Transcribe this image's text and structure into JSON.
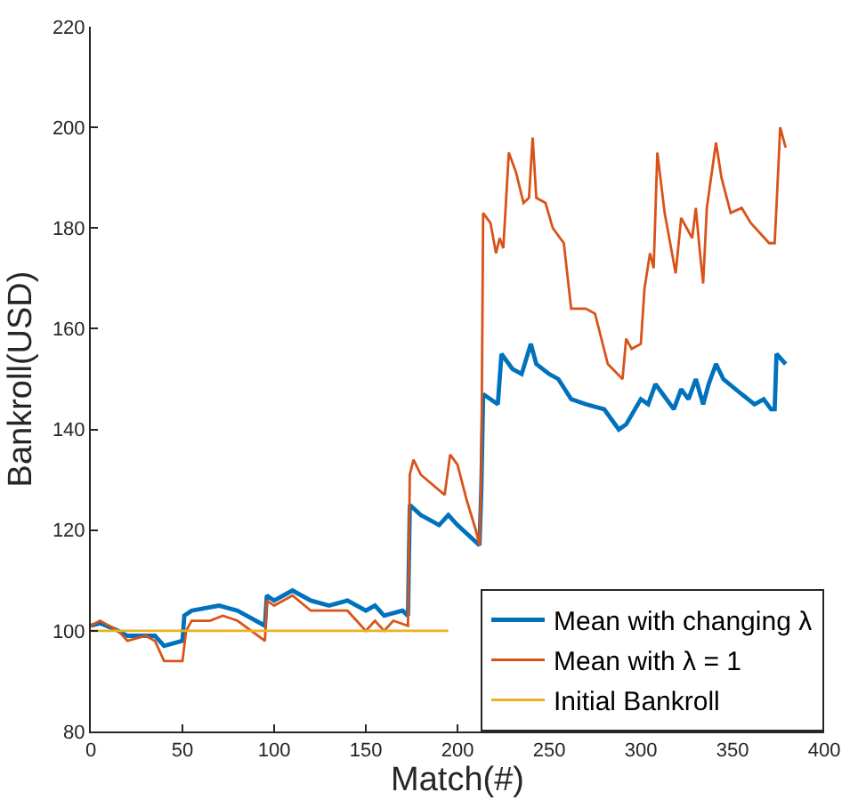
{
  "chart_data": {
    "type": "line",
    "xlabel": "Match(#)",
    "ylabel": "Bankroll(USD)",
    "xlim": [
      0,
      400
    ],
    "xticks": [
      0,
      50,
      100,
      150,
      200,
      250,
      300,
      350,
      400
    ],
    "ylim": [
      80,
      220
    ],
    "yticks": [
      80,
      100,
      120,
      140,
      160,
      180,
      200,
      220
    ],
    "grid": false,
    "legend": "bottom right",
    "marker": "none",
    "line_style": "solid",
    "series": [
      {
        "name": "Mean with changing λ",
        "color": "#0072bd",
        "x": [
          0,
          5,
          15,
          20,
          30,
          35,
          40,
          50,
          51,
          55,
          70,
          80,
          95,
          96,
          100,
          110,
          120,
          130,
          140,
          150,
          155,
          160,
          170,
          173,
          174,
          180,
          190,
          195,
          200,
          212,
          213,
          214,
          218,
          222,
          224,
          230,
          235,
          240,
          243,
          250,
          255,
          262,
          270,
          280,
          284,
          288,
          292,
          300,
          304,
          308,
          312,
          318,
          322,
          326,
          330,
          334,
          337,
          341,
          345,
          355,
          362,
          367,
          371,
          373,
          374,
          379
        ],
        "values": [
          101,
          101.5,
          100,
          99,
          99,
          99,
          97,
          98,
          103,
          104,
          105,
          104,
          101,
          107,
          106,
          108,
          106,
          105,
          106,
          104,
          105,
          103,
          104,
          103,
          125,
          123,
          121,
          123,
          121,
          117,
          128,
          147,
          146,
          145,
          155,
          152,
          151,
          157,
          153,
          151,
          150,
          146,
          145,
          144,
          142,
          140,
          141,
          146,
          145,
          149,
          147,
          144,
          148,
          146,
          150,
          145,
          149,
          153,
          150,
          147,
          145,
          146,
          144,
          144,
          155,
          153
        ]
      },
      {
        "name": "Mean with λ = 1",
        "color": "#d95319",
        "x": [
          0,
          5,
          15,
          20,
          30,
          35,
          40,
          45,
          50,
          52,
          55,
          65,
          72,
          80,
          95,
          96,
          100,
          110,
          120,
          130,
          140,
          150,
          155,
          160,
          165,
          173,
          174,
          176,
          180,
          193,
          196,
          200,
          205,
          210,
          212,
          213,
          214,
          218,
          221,
          223,
          225,
          228,
          232,
          236,
          239,
          241,
          243,
          248,
          252,
          258,
          262,
          270,
          275,
          282,
          290,
          292,
          295,
          300,
          302,
          305,
          307,
          309,
          313,
          317,
          319,
          322,
          325,
          328,
          330,
          332,
          334,
          336,
          341,
          344,
          349,
          355,
          360,
          365,
          370,
          373,
          375,
          376,
          379
        ],
        "values": [
          101,
          102,
          100,
          98,
          99,
          98,
          94,
          94,
          94,
          100,
          102,
          102,
          103,
          102,
          98,
          106,
          105,
          107,
          104,
          104,
          104,
          100,
          102,
          100,
          102,
          101,
          131,
          134,
          131,
          127,
          135,
          133,
          126,
          120,
          117,
          131,
          183,
          181,
          175,
          178,
          176,
          195,
          191,
          185,
          186,
          198,
          186,
          185,
          180,
          177,
          164,
          164,
          163,
          153,
          150,
          158,
          156,
          157,
          168,
          175,
          172,
          195,
          183,
          175,
          171,
          182,
          180,
          178,
          184,
          176,
          169,
          184,
          197,
          190,
          183,
          184,
          181,
          179,
          177,
          177,
          192,
          200,
          196
        ]
      },
      {
        "name": "Initial Bankroll",
        "color": "#edb120",
        "x": [
          0,
          195
        ],
        "values": [
          100,
          100
        ]
      }
    ]
  }
}
